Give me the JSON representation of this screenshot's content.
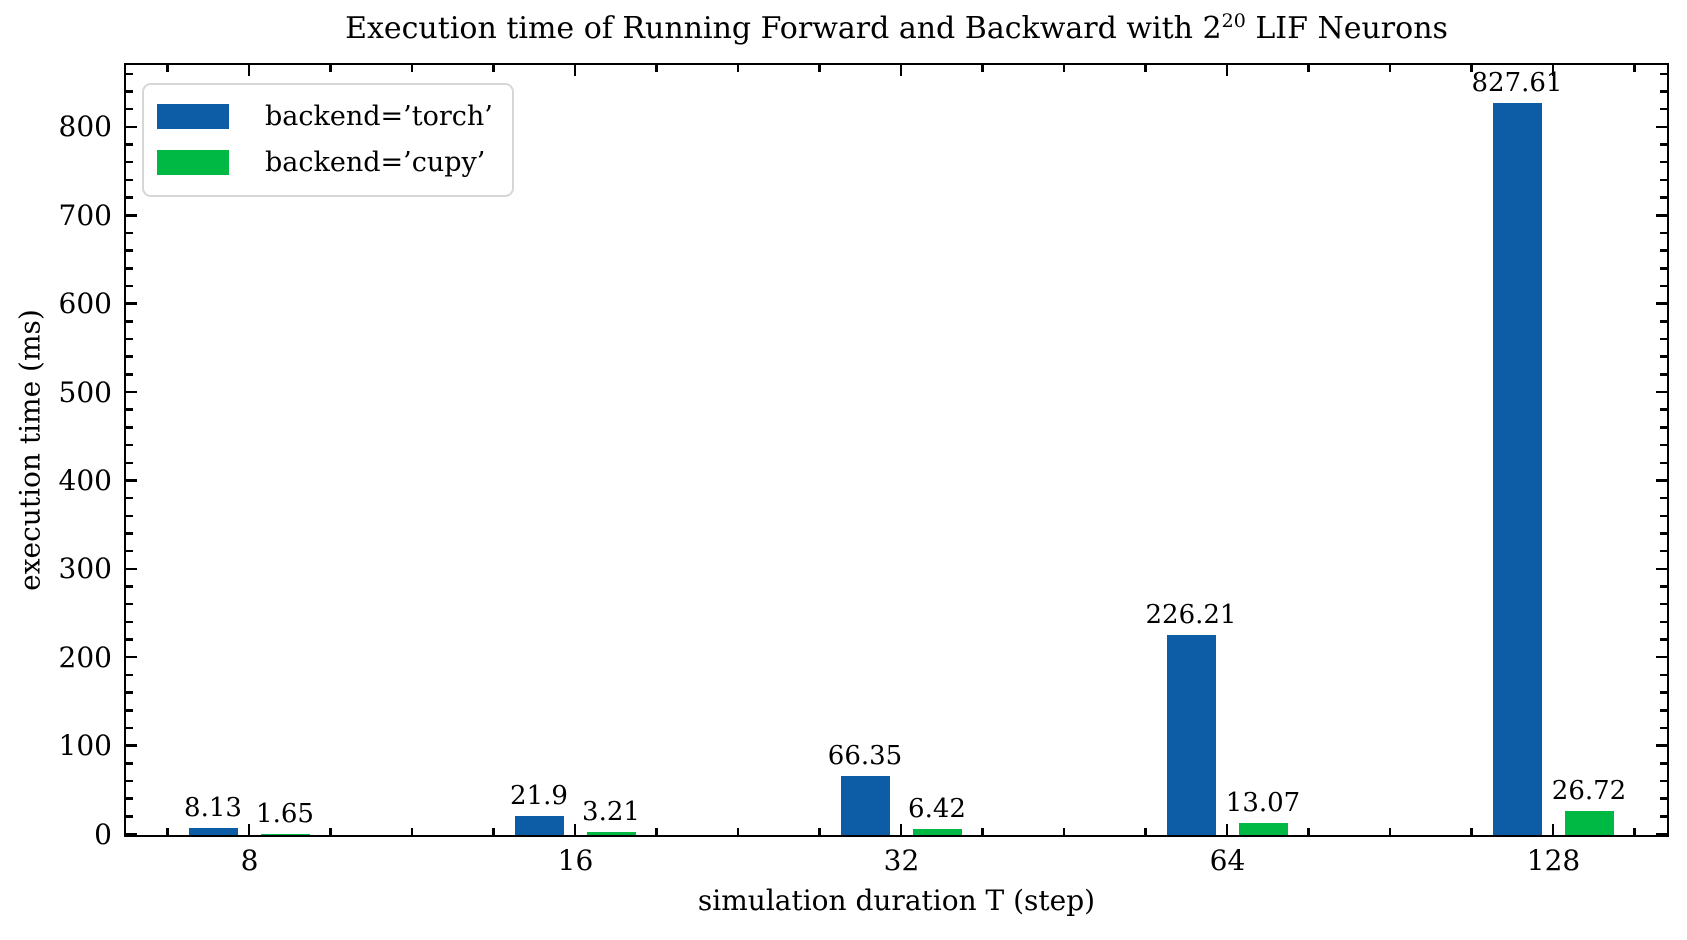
{
  "figure": {
    "title_prefix": "Execution time of Running Forward and Backward with 2",
    "title_superscript": "20",
    "title_suffix": " LIF Neurons"
  },
  "axes": {
    "xlabel": "simulation duration T (step)",
    "ylabel": "execution time (ms)",
    "x_tick_labels": [
      "8",
      "16",
      "32",
      "64",
      "128"
    ],
    "y_tick_labels": [
      "0",
      "100",
      "200",
      "300",
      "400",
      "500",
      "600",
      "700",
      "800"
    ]
  },
  "legend": {
    "items": [
      {
        "label": "backend=’torch’",
        "color": "#0C5DA5"
      },
      {
        "label": "backend=’cupy’",
        "color": "#00B945"
      }
    ]
  },
  "chart_data": {
    "type": "bar",
    "title": "Execution time of Running Forward and Backward with 2^20 LIF Neurons",
    "xlabel": "simulation duration T (step)",
    "ylabel": "execution time (ms)",
    "categories": [
      "8",
      "16",
      "32",
      "64",
      "128"
    ],
    "series": [
      {
        "name": "backend=’torch’",
        "color": "#0C5DA5",
        "values": [
          8.13,
          21.9,
          66.35,
          226.21,
          827.61
        ],
        "value_labels": [
          "8.13",
          "21.9",
          "66.35",
          "226.21",
          "827.61"
        ]
      },
      {
        "name": "backend=’cupy’",
        "color": "#00B945",
        "values": [
          1.65,
          3.21,
          6.42,
          13.07,
          26.72
        ],
        "value_labels": [
          "1.65",
          "3.21",
          "6.42",
          "13.07",
          "26.72"
        ]
      }
    ],
    "ylim": [
      0,
      870
    ],
    "yticks_major": [
      0,
      100,
      200,
      300,
      400,
      500,
      600,
      700,
      800
    ],
    "ytick_minor_step": 20,
    "xtick_minor_per_interval": 3,
    "grid": false,
    "legend_position": "upper left",
    "bar_value_labels_shown": true,
    "tick_direction": "in",
    "ticks_on_all_sides": true
  }
}
